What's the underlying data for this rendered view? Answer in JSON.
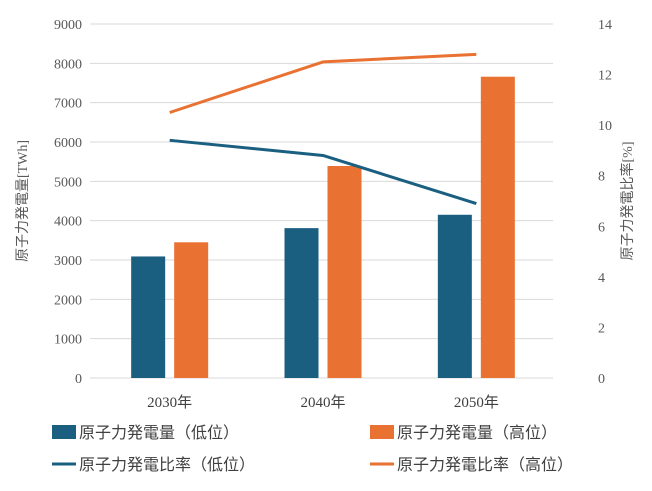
{
  "chart_data": {
    "type": "bar+line",
    "categories": [
      "2030年",
      "2040年",
      "2050年"
    ],
    "ylabel_left": "原子力発電量[TWh]",
    "ylabel_right": "原子力発電比率[%]",
    "ylim_left": [
      0,
      9000
    ],
    "ylim_right": [
      0,
      14
    ],
    "yticks_left": [
      "0",
      "1000",
      "2000",
      "3000",
      "4000",
      "5000",
      "6000",
      "7000",
      "8000",
      "9000"
    ],
    "yticks_right": [
      "0",
      "2",
      "4",
      "6",
      "8",
      "10",
      "12",
      "14"
    ],
    "grid": true,
    "legend_position": "bottom",
    "series": [
      {
        "name": "原子力発電量（低位）",
        "type": "bar",
        "axis": "left",
        "color": "#1a5e80",
        "values": [
          3090,
          3810,
          4150
        ]
      },
      {
        "name": "原子力発電量（高位）",
        "type": "bar",
        "axis": "left",
        "color": "#e97132",
        "values": [
          3450,
          5390,
          7660
        ]
      },
      {
        "name": "原子力発電比率（低位）",
        "type": "line",
        "axis": "right",
        "color": "#1a5e80",
        "values": [
          9.4,
          8.8,
          6.9
        ]
      },
      {
        "name": "原子力発電比率（高位）",
        "type": "line",
        "axis": "right",
        "color": "#e97132",
        "values": [
          10.5,
          12.5,
          12.8
        ]
      }
    ]
  }
}
